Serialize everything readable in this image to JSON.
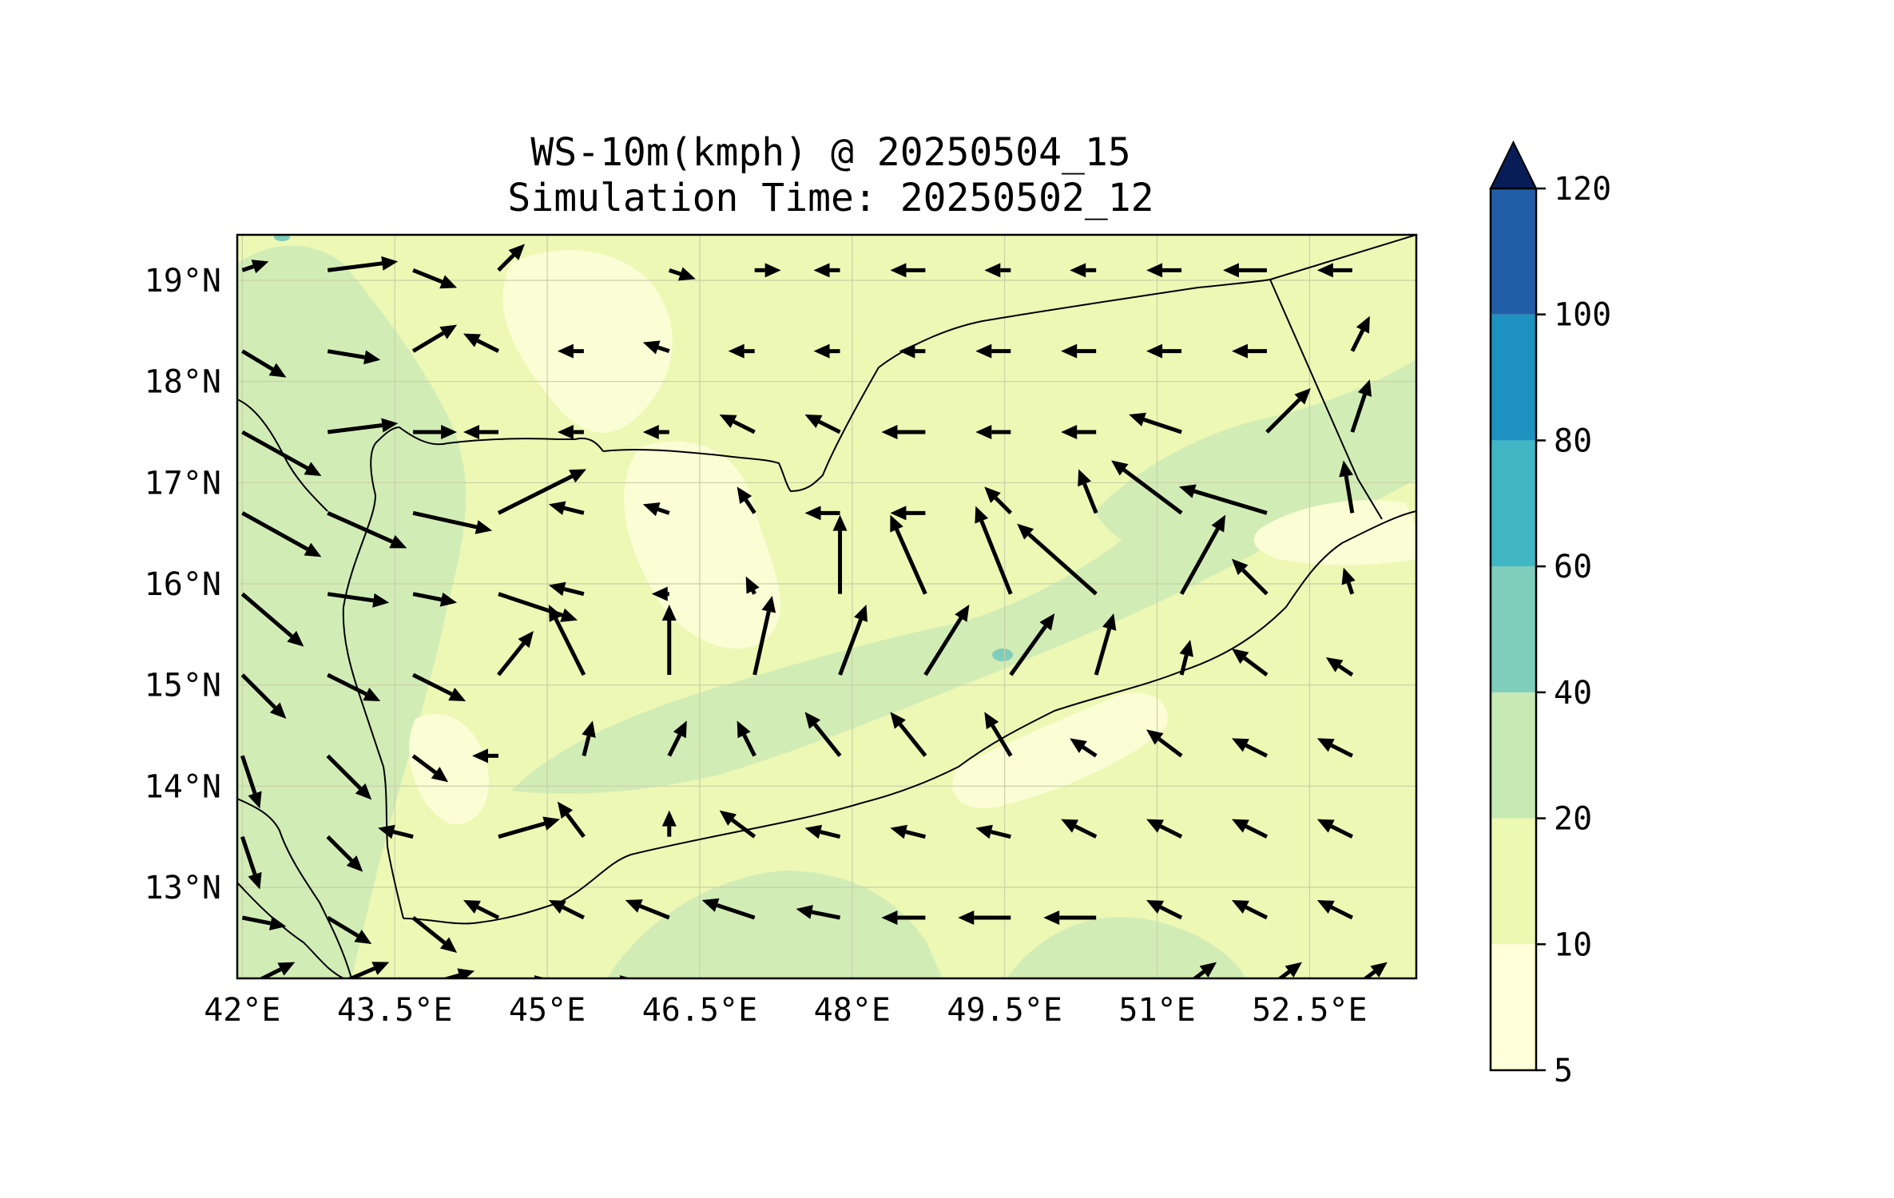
{
  "title": "WS-10m(kmph) @ 20250504_15",
  "subtitle": "Simulation Time: 20250502_12",
  "map": {
    "lon_range": [
      41.95,
      53.55
    ],
    "lat_range": [
      12.1,
      19.45
    ],
    "x_ticks": [
      {
        "value": 42,
        "label": "42°E"
      },
      {
        "value": 43.5,
        "label": "43.5°E"
      },
      {
        "value": 45,
        "label": "45°E"
      },
      {
        "value": 46.5,
        "label": "46.5°E"
      },
      {
        "value": 48,
        "label": "48°E"
      },
      {
        "value": 49.5,
        "label": "49.5°E"
      },
      {
        "value": 51,
        "label": "51°E"
      },
      {
        "value": 52.5,
        "label": "52.5°E"
      }
    ],
    "y_ticks": [
      {
        "value": 13,
        "label": "13°N"
      },
      {
        "value": 14,
        "label": "14°N"
      },
      {
        "value": 15,
        "label": "15°N"
      },
      {
        "value": 16,
        "label": "16°N"
      },
      {
        "value": 17,
        "label": "17°N"
      },
      {
        "value": 18,
        "label": "18°N"
      },
      {
        "value": 19,
        "label": "19°N"
      }
    ],
    "grid": true,
    "coastline_color": "#000000"
  },
  "colorbar": {
    "levels": [
      5,
      10,
      20,
      40,
      60,
      80,
      100,
      120
    ],
    "labels": [
      "5",
      "10",
      "20",
      "40",
      "60",
      "80",
      "100",
      "120"
    ],
    "colors": [
      "#ffffd9",
      "#edf8b1",
      "#c7e9b4",
      "#7fcdbb",
      "#41b6c4",
      "#1d91c0",
      "#225ea8",
      "#253494"
    ],
    "extend_color": "#081d58",
    "extend": "max",
    "position": "right"
  },
  "field_colors": {
    "lt10": "#fbfdd5",
    "10to20": "#edf8b5",
    "20to40": "#d2ecb6",
    "40to60": "#7fcdbb"
  },
  "chart_data": {
    "type": "quiver",
    "title": "WS-10m(kmph) @ 20250504_15",
    "subtitle": "Simulation Time: 20250502_12",
    "units": "kmph",
    "grid_lon": [
      42.0,
      42.84,
      43.68,
      44.52,
      45.36,
      46.2,
      47.04,
      47.88,
      48.72,
      49.56,
      50.4,
      51.24,
      52.08,
      52.92
    ],
    "grid_lat": [
      19.1,
      18.3,
      17.5,
      16.7,
      15.9,
      15.1,
      14.3,
      13.5,
      12.7,
      12.0
    ],
    "u": [
      [
        0.3,
        0.8,
        0.5,
        0.3,
        0.0,
        0.3,
        0.3,
        -0.3,
        -0.4,
        -0.3,
        -0.3,
        -0.4,
        -0.5,
        -0.4
      ],
      [
        0.5,
        0.6,
        0.5,
        -0.4,
        -0.3,
        -0.3,
        -0.3,
        -0.3,
        -0.3,
        -0.4,
        -0.4,
        -0.4,
        -0.4,
        0.2
      ],
      [
        0.9,
        0.8,
        0.5,
        -0.4,
        -0.3,
        -0.3,
        -0.4,
        -0.4,
        -0.5,
        -0.4,
        -0.4,
        -0.6,
        0.5,
        0.2
      ],
      [
        0.9,
        0.9,
        0.9,
        1.0,
        -0.4,
        -0.3,
        -0.2,
        -0.4,
        -0.4,
        -0.3,
        -0.2,
        -0.8,
        -1.0,
        -0.1
      ],
      [
        0.7,
        0.7,
        0.5,
        0.9,
        -0.4,
        -0.2,
        -0.1,
        0.0,
        -0.4,
        -0.4,
        -0.9,
        0.5,
        -0.4,
        -0.1
      ],
      [
        0.5,
        0.6,
        0.6,
        0.4,
        -0.4,
        0.0,
        0.2,
        0.3,
        0.5,
        0.5,
        0.2,
        0.1,
        -0.4,
        -0.3
      ],
      [
        0.2,
        0.5,
        0.4,
        -0.3,
        0.1,
        0.2,
        -0.2,
        -0.4,
        -0.4,
        -0.3,
        -0.3,
        -0.4,
        -0.4,
        -0.4
      ],
      [
        0.2,
        0.4,
        -0.4,
        0.7,
        -0.3,
        0.0,
        -0.4,
        -0.4,
        -0.4,
        -0.4,
        -0.4,
        -0.4,
        -0.4,
        -0.4
      ],
      [
        0.5,
        0.5,
        0.5,
        -0.4,
        -0.4,
        -0.5,
        -0.6,
        -0.5,
        -0.5,
        -0.6,
        -0.6,
        -0.4,
        -0.4,
        -0.4
      ],
      [
        0.6,
        0.7,
        0.7,
        0.6,
        0.6,
        -0.6,
        -0.5,
        -0.4,
        -0.4,
        -0.6,
        -0.5,
        0.4,
        0.4,
        0.4
      ]
    ],
    "v": [
      [
        0.1,
        0.1,
        -0.2,
        0.3,
        0.0,
        -0.1,
        0.0,
        0.0,
        0.0,
        0.0,
        0.0,
        0.0,
        0.0,
        0.0
      ],
      [
        -0.3,
        -0.1,
        0.3,
        0.2,
        0.0,
        0.1,
        0.0,
        0.0,
        0.0,
        0.0,
        0.0,
        0.0,
        0.0,
        0.4
      ],
      [
        -0.5,
        0.1,
        0.0,
        0.0,
        0.0,
        0.0,
        0.2,
        0.2,
        0.0,
        0.0,
        0.0,
        0.2,
        0.5,
        0.6
      ],
      [
        -0.5,
        -0.4,
        -0.2,
        0.5,
        0.1,
        0.1,
        0.3,
        0.0,
        0.0,
        0.3,
        0.5,
        0.6,
        0.3,
        0.6
      ],
      [
        -0.6,
        -0.1,
        -0.1,
        -0.3,
        0.1,
        0.0,
        0.2,
        0.9,
        0.9,
        1.0,
        0.8,
        0.9,
        0.4,
        0.3
      ],
      [
        -0.5,
        -0.3,
        -0.3,
        0.5,
        0.8,
        0.8,
        0.9,
        0.8,
        0.8,
        0.7,
        0.7,
        0.4,
        0.3,
        0.2
      ],
      [
        -0.6,
        -0.5,
        -0.3,
        0.0,
        0.4,
        0.4,
        0.4,
        0.5,
        0.5,
        0.5,
        0.2,
        0.3,
        0.2,
        0.2
      ],
      [
        -0.6,
        -0.4,
        0.1,
        0.2,
        0.4,
        0.3,
        0.3,
        0.1,
        0.1,
        0.1,
        0.2,
        0.2,
        0.2,
        0.2
      ],
      [
        -0.1,
        -0.3,
        -0.4,
        0.2,
        0.2,
        0.2,
        0.2,
        0.1,
        0.0,
        0.0,
        0.0,
        0.2,
        0.2,
        0.2
      ],
      [
        0.3,
        0.3,
        0.2,
        0.1,
        0.1,
        0.0,
        0.0,
        0.0,
        0.0,
        0.0,
        0.0,
        0.3,
        0.3,
        0.3
      ]
    ]
  }
}
